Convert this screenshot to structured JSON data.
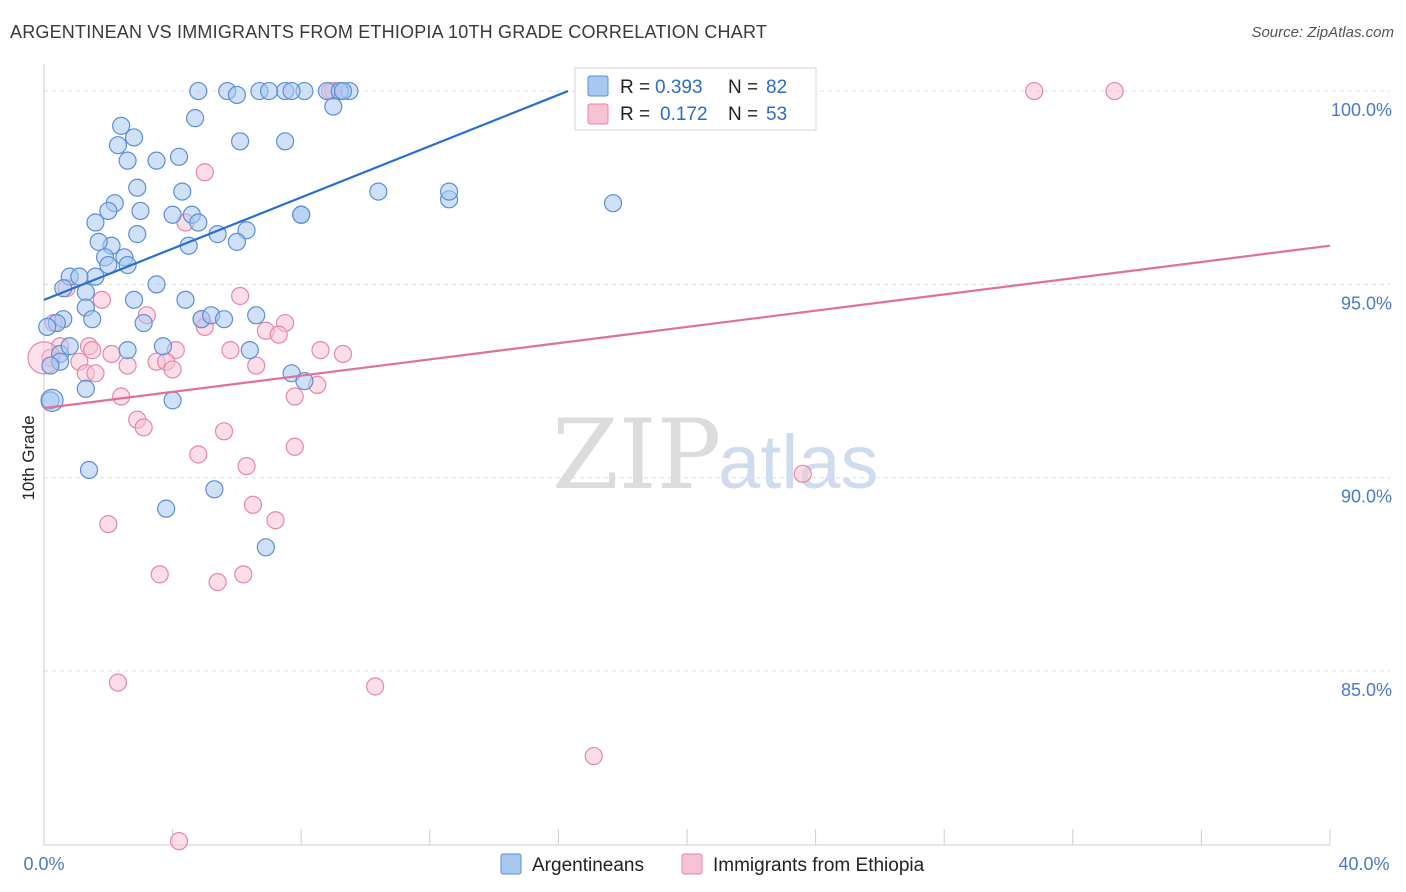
{
  "header": {
    "title": "ARGENTINEAN VS IMMIGRANTS FROM ETHIOPIA 10TH GRADE CORRELATION CHART",
    "source": "Source: ZipAtlas.com"
  },
  "watermark": {
    "zip": "ZIP",
    "atlas": "atlas"
  },
  "legend_top": [
    {
      "r_label": "R =",
      "r_value": "0.393",
      "n_label": "N =",
      "n_value": "82"
    },
    {
      "r_label": "R =",
      "r_value": "0.172",
      "n_label": "N =",
      "n_value": "53"
    }
  ],
  "legend_bottom": [
    "Argentineans",
    "Immigrants from Ethiopia"
  ],
  "colors": {
    "blue_fill": "#a9c8f0",
    "blue_stroke": "#5a8fd8",
    "blue_line": "#2a6fd0",
    "pink_fill": "#f7c3d3",
    "pink_stroke": "#e986a6",
    "pink_line": "#e0709a",
    "grid": "#dddddd",
    "tick_label": "#4a7ac8"
  },
  "chart_data": {
    "type": "scatter",
    "title": "ARGENTINEAN VS IMMIGRANTS FROM ETHIOPIA 10TH GRADE CORRELATION CHART",
    "xlabel": "",
    "ylabel": "10th Grade",
    "xlim": [
      0,
      40
    ],
    "ylim": [
      80.5,
      100.7
    ],
    "x_tick_labels": [
      "0.0%",
      "40.0%"
    ],
    "y_ticks": [
      85,
      90,
      95,
      100
    ],
    "y_tick_labels": [
      "85.0%",
      "90.0%",
      "95.0%",
      "100.0%"
    ],
    "grid": true,
    "legend_position": "top-center",
    "series": [
      {
        "name": "Argentineans",
        "r": 0.393,
        "n": 82,
        "trend": [
          [
            0.0,
            94.6
          ],
          [
            16.3,
            100.0
          ]
        ],
        "points": [
          [
            4.8,
            100.0
          ],
          [
            5.7,
            100.0
          ],
          [
            6.7,
            100.0
          ],
          [
            7.5,
            100.0
          ],
          [
            8.1,
            100.0
          ],
          [
            8.8,
            100.0
          ],
          [
            9.5,
            100.0
          ],
          [
            6.0,
            99.9
          ],
          [
            7.7,
            100.0
          ],
          [
            9.2,
            100.0
          ],
          [
            9.0,
            99.6
          ],
          [
            4.7,
            99.3
          ],
          [
            2.4,
            99.1
          ],
          [
            2.8,
            98.8
          ],
          [
            2.3,
            98.6
          ],
          [
            6.1,
            98.7
          ],
          [
            7.5,
            98.7
          ],
          [
            2.6,
            98.2
          ],
          [
            3.5,
            98.2
          ],
          [
            4.2,
            98.3
          ],
          [
            2.9,
            97.5
          ],
          [
            4.3,
            97.4
          ],
          [
            10.4,
            97.4
          ],
          [
            12.6,
            97.2
          ],
          [
            12.6,
            97.4
          ],
          [
            17.7,
            97.1
          ],
          [
            2.2,
            97.1
          ],
          [
            4.0,
            96.8
          ],
          [
            4.6,
            96.8
          ],
          [
            8.0,
            96.8
          ],
          [
            8.0,
            96.8
          ],
          [
            1.6,
            96.6
          ],
          [
            4.8,
            96.6
          ],
          [
            2.9,
            96.3
          ],
          [
            5.4,
            96.3
          ],
          [
            6.3,
            96.4
          ],
          [
            6.0,
            96.1
          ],
          [
            2.1,
            96.0
          ],
          [
            1.7,
            96.1
          ],
          [
            4.5,
            96.0
          ],
          [
            1.9,
            95.7
          ],
          [
            2.5,
            95.7
          ],
          [
            2.0,
            95.5
          ],
          [
            2.6,
            95.5
          ],
          [
            0.8,
            95.2
          ],
          [
            1.6,
            95.2
          ],
          [
            1.1,
            95.2
          ],
          [
            3.5,
            95.0
          ],
          [
            1.3,
            94.8
          ],
          [
            0.6,
            94.9
          ],
          [
            2.8,
            94.6
          ],
          [
            1.3,
            94.4
          ],
          [
            4.4,
            94.6
          ],
          [
            0.6,
            94.1
          ],
          [
            0.4,
            94.0
          ],
          [
            3.1,
            94.0
          ],
          [
            4.9,
            94.1
          ],
          [
            6.6,
            94.2
          ],
          [
            5.2,
            94.2
          ],
          [
            0.1,
            93.9
          ],
          [
            2.6,
            93.3
          ],
          [
            3.7,
            93.4
          ],
          [
            6.4,
            93.3
          ],
          [
            0.5,
            93.2
          ],
          [
            0.5,
            93.0
          ],
          [
            0.2,
            92.9
          ],
          [
            7.7,
            92.7
          ],
          [
            8.1,
            92.5
          ],
          [
            1.3,
            92.3
          ],
          [
            4.0,
            92.0
          ],
          [
            0.2,
            92.0
          ],
          [
            1.4,
            90.2
          ],
          [
            5.3,
            89.7
          ],
          [
            3.8,
            89.2
          ],
          [
            6.9,
            88.2
          ],
          [
            0.8,
            93.4
          ],
          [
            1.5,
            94.1
          ],
          [
            3.0,
            96.9
          ],
          [
            5.6,
            94.1
          ],
          [
            7.0,
            100.0
          ],
          [
            9.3,
            100.0
          ],
          [
            2.0,
            96.9
          ]
        ]
      },
      {
        "name": "Immigrants from Ethiopia",
        "r": 0.172,
        "n": 53,
        "trend": [
          [
            0.0,
            91.8
          ],
          [
            40.0,
            96.0
          ]
        ],
        "points": [
          [
            9.0,
            100.0
          ],
          [
            8.9,
            100.0
          ],
          [
            30.8,
            100.0
          ],
          [
            33.3,
            100.0
          ],
          [
            5.0,
            97.9
          ],
          [
            4.4,
            96.6
          ],
          [
            0.7,
            94.9
          ],
          [
            1.8,
            94.6
          ],
          [
            6.1,
            94.7
          ],
          [
            3.2,
            94.2
          ],
          [
            4.9,
            94.1
          ],
          [
            7.5,
            94.0
          ],
          [
            6.9,
            93.8
          ],
          [
            7.3,
            93.7
          ],
          [
            1.4,
            93.4
          ],
          [
            1.5,
            93.3
          ],
          [
            2.1,
            93.2
          ],
          [
            4.1,
            93.3
          ],
          [
            5.8,
            93.3
          ],
          [
            9.3,
            93.2
          ],
          [
            1.1,
            93.0
          ],
          [
            2.6,
            92.9
          ],
          [
            3.5,
            93.0
          ],
          [
            3.8,
            93.0
          ],
          [
            4.0,
            92.8
          ],
          [
            1.3,
            92.7
          ],
          [
            1.6,
            92.7
          ],
          [
            8.5,
            92.4
          ],
          [
            2.4,
            92.1
          ],
          [
            7.8,
            92.1
          ],
          [
            2.9,
            91.5
          ],
          [
            3.1,
            91.3
          ],
          [
            5.6,
            91.2
          ],
          [
            7.8,
            90.8
          ],
          [
            4.8,
            90.6
          ],
          [
            6.3,
            90.3
          ],
          [
            23.6,
            90.1
          ],
          [
            6.5,
            89.3
          ],
          [
            7.2,
            88.9
          ],
          [
            2.0,
            88.8
          ],
          [
            3.6,
            87.5
          ],
          [
            6.2,
            87.5
          ],
          [
            5.4,
            87.3
          ],
          [
            2.3,
            84.7
          ],
          [
            10.3,
            84.6
          ],
          [
            17.1,
            82.8
          ],
          [
            4.2,
            80.6
          ],
          [
            0.2,
            93.1
          ],
          [
            0.5,
            93.4
          ],
          [
            0.3,
            94.0
          ],
          [
            5.0,
            93.9
          ],
          [
            6.6,
            92.9
          ],
          [
            8.6,
            93.3
          ]
        ]
      }
    ]
  }
}
